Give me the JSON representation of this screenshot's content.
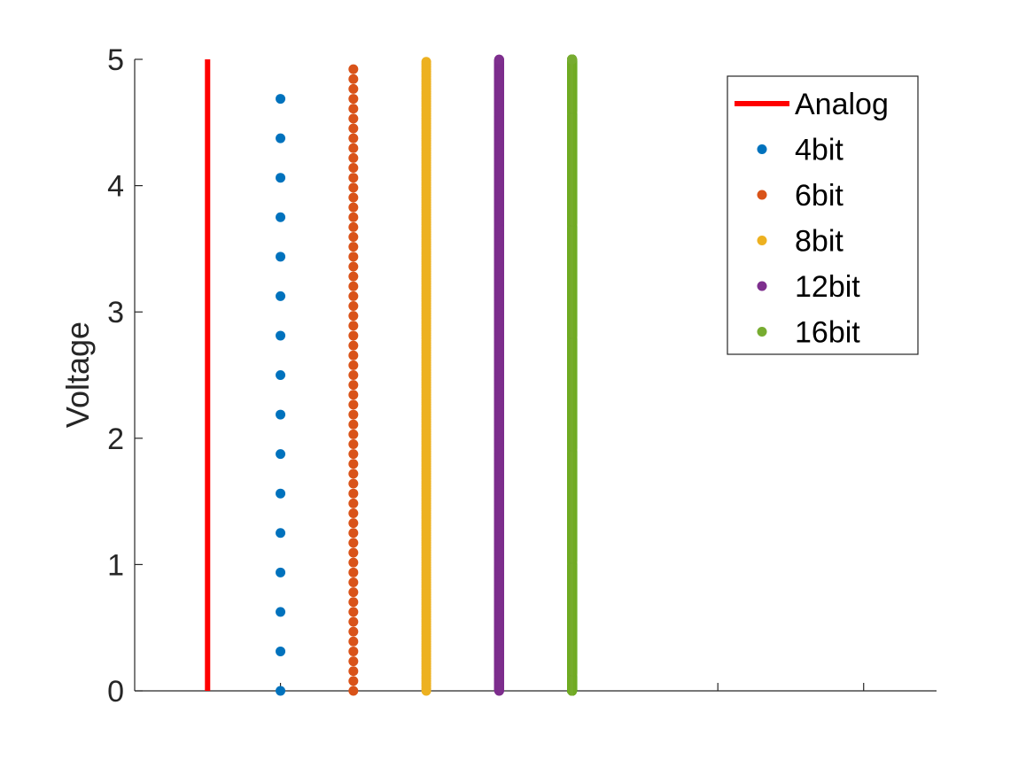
{
  "chart_data": {
    "type": "scatter",
    "title": "",
    "xlabel": "",
    "ylabel": "Voltage",
    "ylim": [
      0,
      5
    ],
    "yticks": [
      "0",
      "1",
      "2",
      "3",
      "4",
      "5"
    ],
    "xlim": [
      0,
      11
    ],
    "grid": false,
    "legend_position": "top-right",
    "series": [
      {
        "name": "Analog",
        "style": "line",
        "color": "#ff0000",
        "x": 1,
        "levels": 0,
        "range": [
          0,
          5
        ]
      },
      {
        "name": "4bit",
        "style": "dots",
        "color": "#0072bd",
        "x": 2,
        "levels": 16,
        "range": [
          0,
          4.6875
        ]
      },
      {
        "name": "6bit",
        "style": "dots",
        "color": "#d95319",
        "x": 3,
        "levels": 64,
        "range": [
          0,
          4.921875
        ]
      },
      {
        "name": "8bit",
        "style": "dots",
        "color": "#edb120",
        "x": 4,
        "levels": 256,
        "range": [
          0,
          4.98046875
        ]
      },
      {
        "name": "12bit",
        "style": "dots",
        "color": "#7e2f8e",
        "x": 5,
        "levels": 4096,
        "range": [
          0,
          4.9987793
        ]
      },
      {
        "name": "16bit",
        "style": "dots",
        "color": "#77ac30",
        "x": 6,
        "levels": 65536,
        "range": [
          0,
          4.99992371
        ]
      }
    ]
  }
}
